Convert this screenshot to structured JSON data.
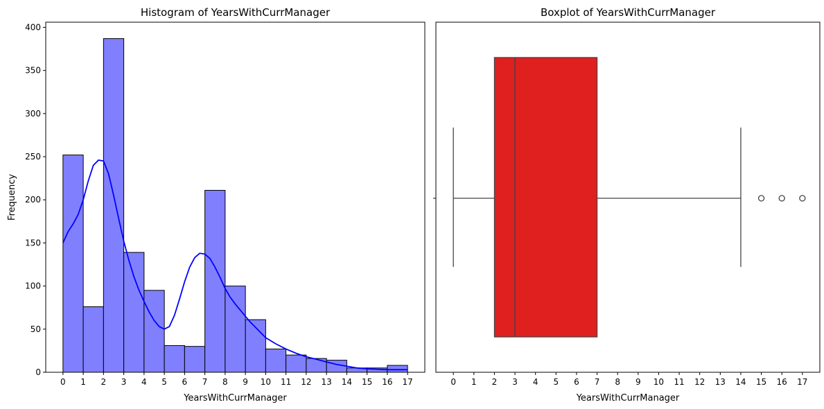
{
  "chart_data": [
    {
      "type": "bar",
      "title": "Histogram of YearsWithCurrManager",
      "xlabel": "YearsWithCurrManager",
      "ylabel": "Frequency",
      "xlim": [
        -0.85,
        17.85
      ],
      "ylim": [
        0,
        406
      ],
      "xticks": [
        0,
        1,
        2,
        3,
        4,
        5,
        6,
        7,
        8,
        9,
        10,
        11,
        12,
        13,
        14,
        15,
        16,
        17
      ],
      "yticks": [
        0,
        50,
        100,
        150,
        200,
        250,
        300,
        350,
        400
      ],
      "bin_edges": [
        0,
        1,
        2,
        3,
        4,
        5,
        6,
        7,
        8,
        9,
        10,
        11,
        12,
        13,
        14,
        15,
        16,
        17
      ],
      "values": [
        252,
        76,
        387,
        139,
        95,
        31,
        30,
        211,
        100,
        61,
        27,
        20,
        16,
        14,
        5,
        5,
        8
      ],
      "bar_color": "#8080ff",
      "edge_color": "#000000",
      "kde": {
        "color": "#0000ff",
        "x": [
          0,
          0.25,
          0.5,
          0.75,
          1,
          1.25,
          1.5,
          1.75,
          2,
          2.25,
          2.5,
          2.75,
          3,
          3.25,
          3.5,
          3.75,
          4,
          4.25,
          4.5,
          4.75,
          5,
          5.25,
          5.5,
          5.75,
          6,
          6.25,
          6.5,
          6.75,
          7,
          7.25,
          7.5,
          7.75,
          8,
          8.25,
          8.5,
          8.75,
          9,
          9.25,
          9.5,
          9.75,
          10,
          10.5,
          11,
          11.5,
          12,
          12.5,
          13,
          13.5,
          14,
          14.5,
          15,
          15.5,
          16,
          16.5,
          17
        ],
        "y": [
          150,
          163,
          172,
          183,
          200,
          222,
          240,
          246,
          245,
          230,
          205,
          178,
          152,
          130,
          111,
          95,
          82,
          70,
          60,
          53,
          50,
          53,
          66,
          85,
          105,
          122,
          133,
          138,
          137,
          132,
          122,
          110,
          97,
          87,
          79,
          72,
          65,
          58,
          52,
          46,
          40,
          33,
          27,
          22,
          18,
          15,
          12,
          9,
          7,
          5,
          4,
          3.5,
          3,
          3,
          3
        ]
      }
    },
    {
      "type": "boxplot",
      "title": "Boxplot of YearsWithCurrManager",
      "xlabel": "YearsWithCurrManager",
      "xlim": [
        -0.85,
        17.85
      ],
      "xticks": [
        0,
        1,
        2,
        3,
        4,
        5,
        6,
        7,
        8,
        9,
        10,
        11,
        12,
        13,
        14,
        15,
        16,
        17
      ],
      "whisker_low": 0,
      "q1": 2,
      "median": 3,
      "q3": 7,
      "whisker_high": 14,
      "outliers": [
        15,
        16,
        17
      ],
      "box_color": "#e01f1f",
      "line_color": "#444444"
    }
  ]
}
